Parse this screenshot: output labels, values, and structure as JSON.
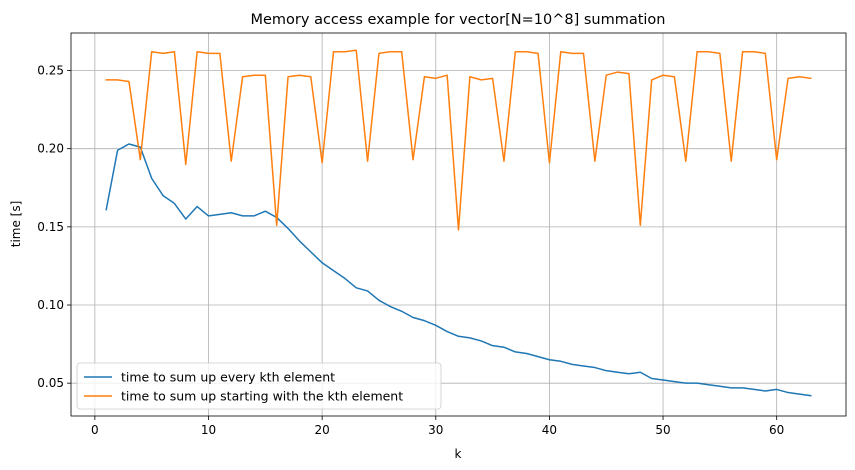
{
  "chart_data": {
    "type": "line",
    "title": "Memory access example for vector[N=10^8] summation",
    "xlabel": "k",
    "ylabel": "time [s]",
    "xlim": [
      -2.1,
      66.1
    ],
    "ylim": [
      0.029,
      0.274
    ],
    "xticks": [
      0,
      10,
      20,
      30,
      40,
      50,
      60
    ],
    "yticks": [
      0.05,
      0.1,
      0.15,
      0.2,
      0.25
    ],
    "ytick_labels": [
      "0.05",
      "0.10",
      "0.15",
      "0.20",
      "0.25"
    ],
    "grid": true,
    "legend_position": "lower-left",
    "x": [
      1,
      2,
      3,
      4,
      5,
      6,
      7,
      8,
      9,
      10,
      11,
      12,
      13,
      14,
      15,
      16,
      17,
      18,
      19,
      20,
      21,
      22,
      23,
      24,
      25,
      26,
      27,
      28,
      29,
      30,
      31,
      32,
      33,
      34,
      35,
      36,
      37,
      38,
      39,
      40,
      41,
      42,
      43,
      44,
      45,
      46,
      47,
      48,
      49,
      50,
      51,
      52,
      53,
      54,
      55,
      56,
      57,
      58,
      59,
      60,
      61,
      62,
      63
    ],
    "series": [
      {
        "name": "time to sum up every kth element",
        "color": "#1f77b4",
        "values": [
          0.161,
          0.199,
          0.203,
          0.201,
          0.181,
          0.17,
          0.165,
          0.155,
          0.163,
          0.157,
          0.158,
          0.159,
          0.157,
          0.157,
          0.16,
          0.156,
          0.149,
          0.141,
          0.134,
          0.127,
          0.122,
          0.117,
          0.111,
          0.109,
          0.103,
          0.099,
          0.096,
          0.092,
          0.09,
          0.087,
          0.083,
          0.08,
          0.079,
          0.077,
          0.074,
          0.073,
          0.07,
          0.069,
          0.067,
          0.065,
          0.064,
          0.062,
          0.061,
          0.06,
          0.058,
          0.057,
          0.056,
          0.057,
          0.053,
          0.052,
          0.051,
          0.05,
          0.05,
          0.049,
          0.048,
          0.047,
          0.047,
          0.046,
          0.045,
          0.046,
          0.044,
          0.043,
          0.042
        ]
      },
      {
        "name": "time to sum up starting with the kth element",
        "color": "#ff7f0e",
        "values": [
          0.244,
          0.244,
          0.243,
          0.193,
          0.262,
          0.261,
          0.262,
          0.19,
          0.262,
          0.261,
          0.261,
          0.192,
          0.246,
          0.247,
          0.247,
          0.151,
          0.246,
          0.247,
          0.246,
          0.191,
          0.262,
          0.262,
          0.263,
          0.192,
          0.261,
          0.262,
          0.262,
          0.193,
          0.246,
          0.245,
          0.247,
          0.148,
          0.246,
          0.244,
          0.245,
          0.192,
          0.262,
          0.262,
          0.261,
          0.191,
          0.262,
          0.261,
          0.261,
          0.192,
          0.247,
          0.249,
          0.248,
          0.151,
          0.244,
          0.247,
          0.246,
          0.192,
          0.262,
          0.262,
          0.261,
          0.192,
          0.262,
          0.262,
          0.261,
          0.193,
          0.245,
          0.246,
          0.245
        ]
      }
    ]
  }
}
